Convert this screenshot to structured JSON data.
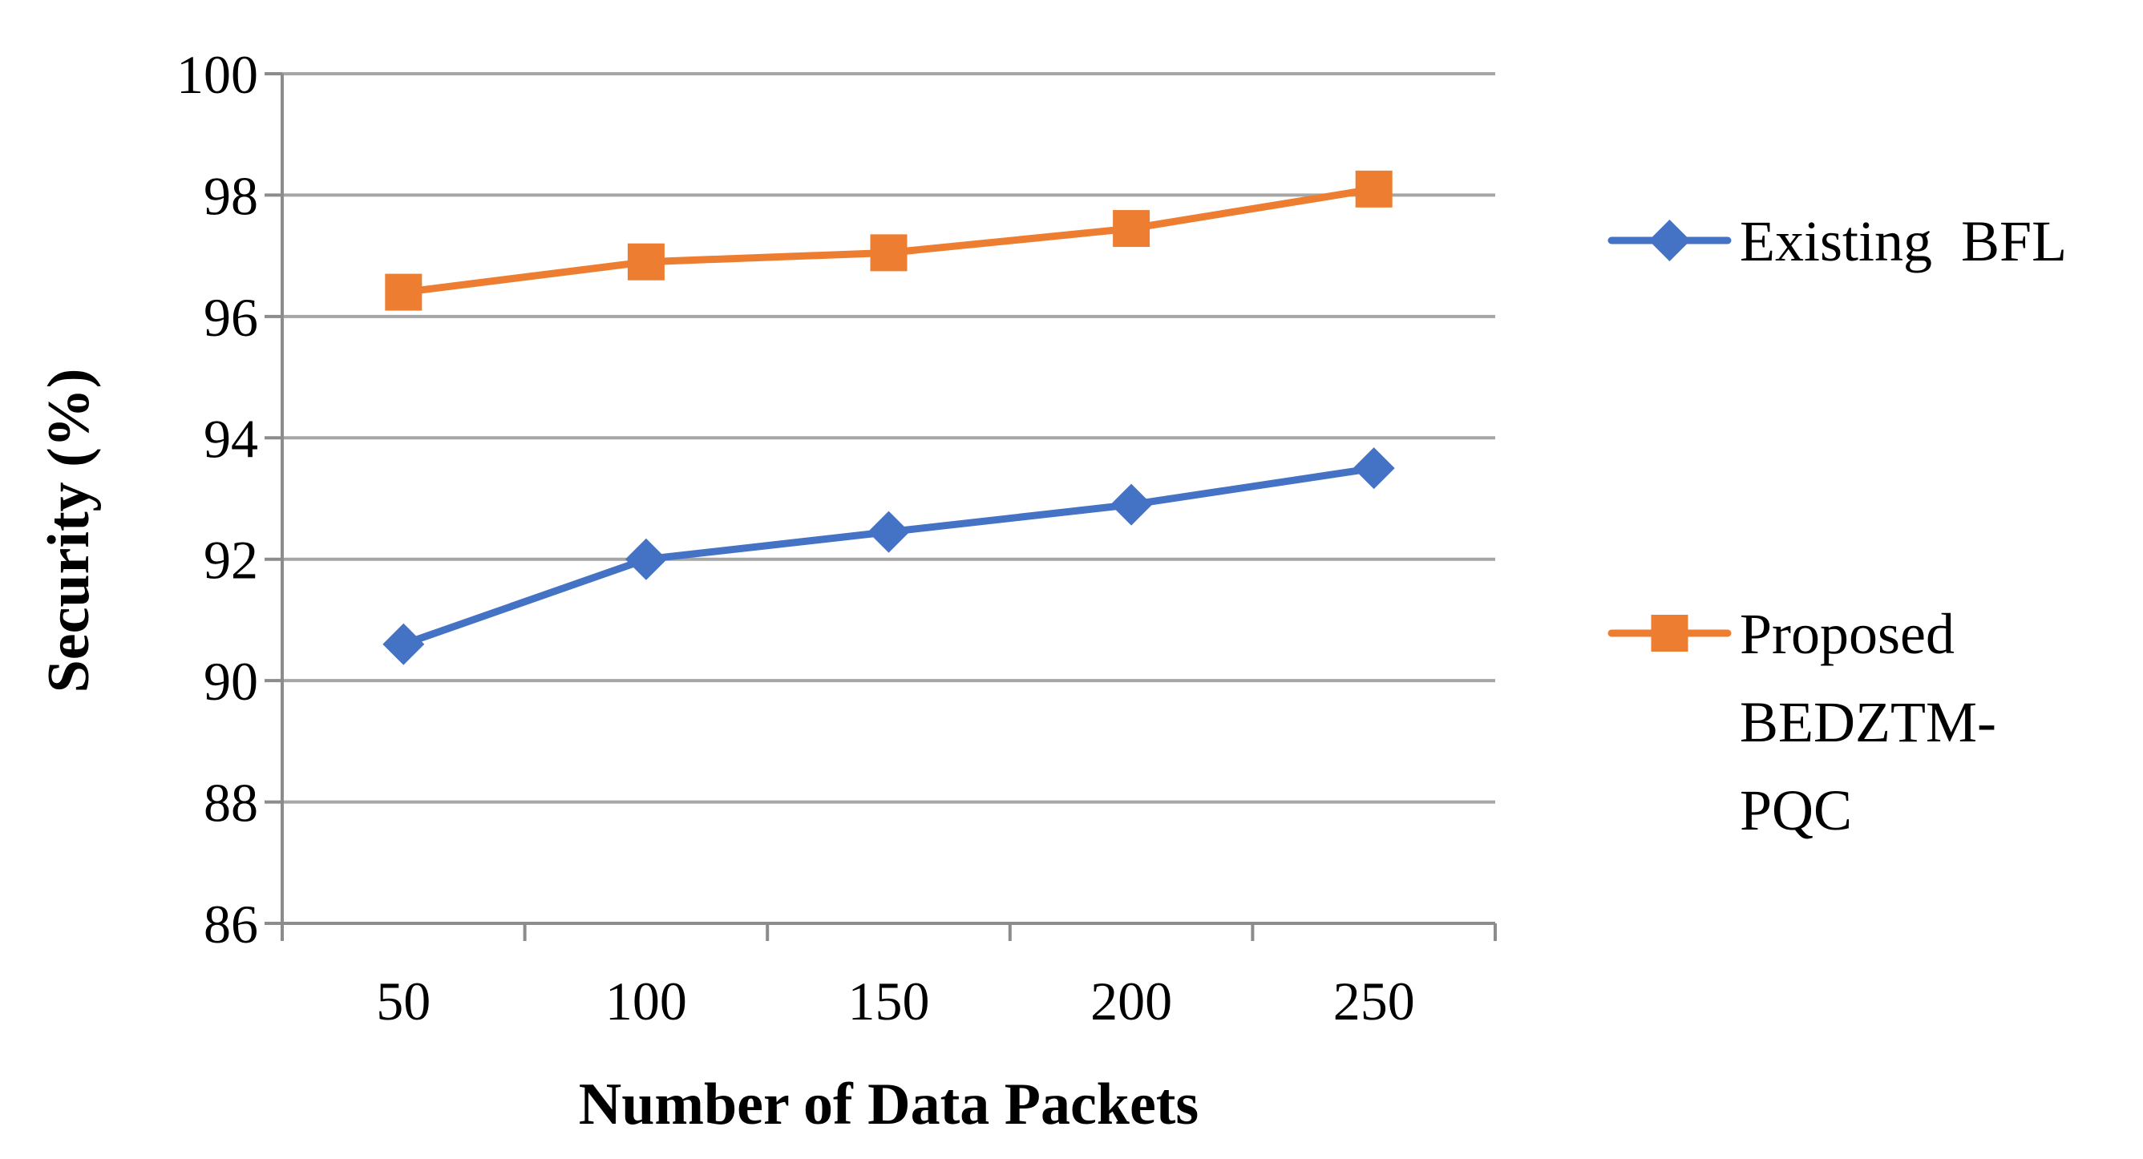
{
  "chart_data": {
    "type": "line",
    "title": "",
    "xlabel": "Number of  Data Packets",
    "ylabel": "Security (%)",
    "categories": [
      "50",
      "100",
      "150",
      "200",
      "250"
    ],
    "x": [
      50,
      100,
      150,
      200,
      250
    ],
    "ylim": [
      86,
      100
    ],
    "yticks": [
      86,
      88,
      90,
      92,
      94,
      96,
      98,
      100
    ],
    "grid": "horizontal",
    "legend_position": "right",
    "series": [
      {
        "name": "Existing  BFL",
        "legend_lines": [
          "Existing  BFL"
        ],
        "values": [
          90.6,
          92.0,
          92.45,
          92.9,
          93.5
        ],
        "color": "#4472C4",
        "marker": "diamond"
      },
      {
        "name": "Proposed BEDZTM-PQC",
        "legend_lines": [
          "Proposed",
          "BEDZTM-",
          "PQC"
        ],
        "values": [
          96.4,
          96.9,
          97.05,
          97.45,
          98.1
        ],
        "color": "#ED7D31",
        "marker": "square"
      }
    ]
  },
  "colors": {
    "grid": "#A6A6A6",
    "axis": "#8C8C8C",
    "background": "#FFFFFF"
  }
}
